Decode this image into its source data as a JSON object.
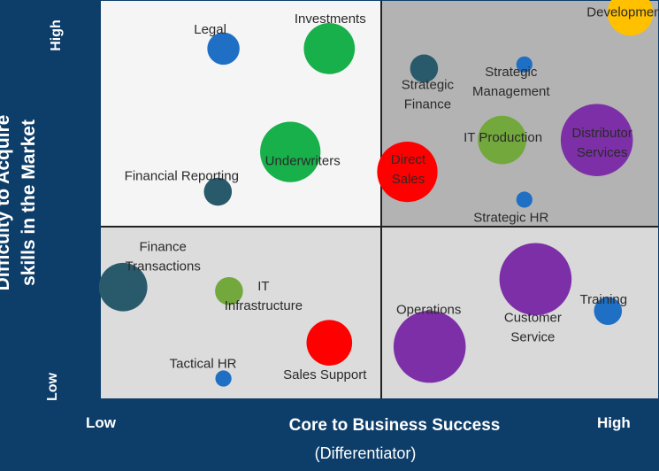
{
  "chart_data": {
    "type": "scatter",
    "xlabel": "Core to Business Success",
    "xlabel_sub": "(Differentiator)",
    "ylabel_lines": [
      "Difficulty to Acquire",
      "skills in the Market"
    ],
    "x_low_label": "Low",
    "x_high_label": "High",
    "y_low_label": "Low",
    "y_high_label": "High",
    "quadrant_colors": {
      "top_left": "#f5f5f5",
      "top_right": "#b3b3b3",
      "bottom_left": "#dcdcdc",
      "bottom_right": "#d9d9d9"
    },
    "points": [
      {
        "name": "Legal",
        "x": 22,
        "y": 88,
        "size": 2,
        "color": "#1f6fc5"
      },
      {
        "name": "Investments",
        "x": 41,
        "y": 88,
        "size": 5,
        "color": "#18b04a"
      },
      {
        "name": "Underwriters",
        "x": 34,
        "y": 62,
        "size": 7,
        "color": "#18b04a"
      },
      {
        "name": "Financial Reporting",
        "x": 21,
        "y": 52,
        "size": 1.5,
        "color": "#285a6b"
      },
      {
        "name": "Product Development",
        "x": 95,
        "y": 97,
        "size": 4,
        "color": "#ffc000"
      },
      {
        "name": "Strategic Finance",
        "x": 58,
        "y": 83,
        "size": 1.5,
        "color": "#285a6b"
      },
      {
        "name": "Strategic Management",
        "x": 76,
        "y": 84,
        "size": 0.5,
        "color": "#1f6fc5"
      },
      {
        "name": "IT Production",
        "x": 72,
        "y": 65,
        "size": 4.5,
        "color": "#72a83c"
      },
      {
        "name": "Distributor Services",
        "x": 89,
        "y": 65,
        "size": 10,
        "color": "#7d2fa8"
      },
      {
        "name": "Direct Sales",
        "x": 55,
        "y": 57,
        "size": 7,
        "color": "#ff0000"
      },
      {
        "name": "Strategic HR",
        "x": 76,
        "y": 50,
        "size": 0.5,
        "color": "#1f6fc5"
      },
      {
        "name": "Finance Transactions",
        "x": 4,
        "y": 28,
        "size": 4.5,
        "color": "#285a6b"
      },
      {
        "name": "IT Infrastructure",
        "x": 23,
        "y": 27,
        "size": 1.5,
        "color": "#72a83c"
      },
      {
        "name": "Tactical HR",
        "x": 22,
        "y": 5,
        "size": 0.5,
        "color": "#1f6fc5"
      },
      {
        "name": "Sales Support",
        "x": 41,
        "y": 14,
        "size": 4,
        "color": "#ff0000"
      },
      {
        "name": "Operations",
        "x": 59,
        "y": 13,
        "size": 10,
        "color": "#7d2fa8"
      },
      {
        "name": "Customer Service",
        "x": 78,
        "y": 30,
        "size": 10,
        "color": "#7d2fa8"
      },
      {
        "name": "Training",
        "x": 91,
        "y": 22,
        "size": 1.5,
        "color": "#1f6fc5"
      }
    ]
  }
}
